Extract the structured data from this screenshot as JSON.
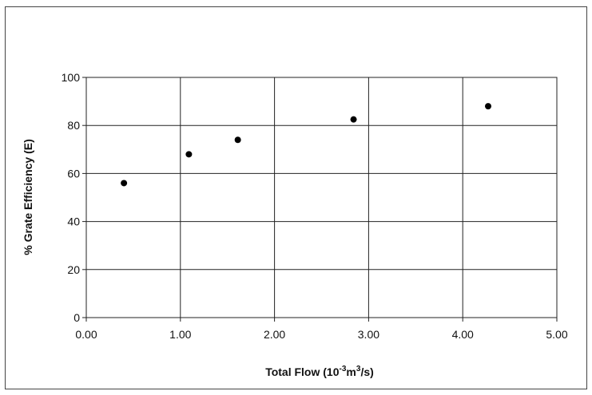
{
  "chart_data": {
    "type": "scatter",
    "title": "",
    "xlabel_main": "Total Flow (10",
    "xlabel_exp1": "-3",
    "xlabel_mid": "m",
    "xlabel_exp2": "3",
    "xlabel_end": "/s)",
    "ylabel": "% Grate Efficiency (E)",
    "xlim": [
      0,
      5
    ],
    "ylim": [
      0,
      100
    ],
    "x_ticks": [
      "0.00",
      "1.00",
      "2.00",
      "3.00",
      "4.00",
      "5.00"
    ],
    "y_ticks": [
      "0",
      "20",
      "40",
      "60",
      "80",
      "100"
    ],
    "grid": true,
    "legend": "none",
    "marker_color": "#000000",
    "series": [
      {
        "x": [
          0.4,
          1.09,
          1.61,
          2.84,
          4.27
        ],
        "y": [
          56,
          68,
          74,
          82.5,
          88
        ]
      }
    ]
  }
}
